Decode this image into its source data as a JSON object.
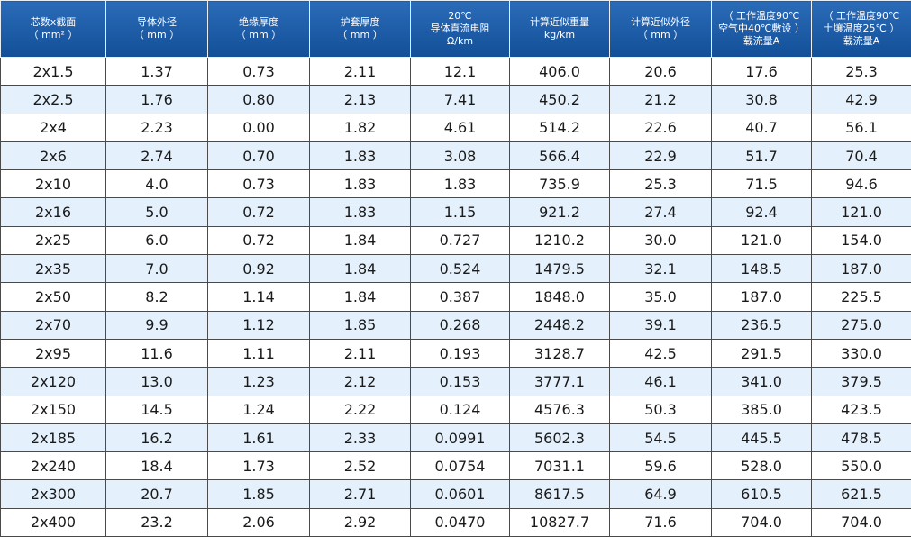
{
  "table": {
    "header": [
      [
        "芯数x截面",
        "（ mm² ）"
      ],
      [
        "导体外径",
        "（ mm ）"
      ],
      [
        "绝缘厚度",
        "（ mm ）"
      ],
      [
        "护套厚度",
        "（ mm ）"
      ],
      [
        "20℃",
        "导体直流电阻",
        "Ω/km"
      ],
      [
        "计算近似重量",
        "kg/km"
      ],
      [
        "计算近似外径",
        "（ mm ）"
      ],
      [
        "（ 工作温度90℃",
        "空气中40℃敷设 ）",
        "载流量A"
      ],
      [
        "（ 工作温度90℃",
        "土壤温度25℃ ）",
        "载流量A"
      ]
    ],
    "rows": [
      [
        "2x1.5",
        "1.37",
        "0.73",
        "2.11",
        "12.1",
        "406.0",
        "20.6",
        "17.6",
        "25.3"
      ],
      [
        "2x2.5",
        "1.76",
        "0.80",
        "2.13",
        "7.41",
        "450.2",
        "21.2",
        "30.8",
        "42.9"
      ],
      [
        "2x4",
        "2.23",
        "0.00",
        "1.82",
        "4.61",
        "514.2",
        "22.6",
        "40.7",
        "56.1"
      ],
      [
        "2x6",
        "2.74",
        "0.70",
        "1.83",
        "3.08",
        "566.4",
        "22.9",
        "51.7",
        "70.4"
      ],
      [
        "2x10",
        "4.0",
        "0.73",
        "1.83",
        "1.83",
        "735.9",
        "25.3",
        "71.5",
        "94.6"
      ],
      [
        "2x16",
        "5.0",
        "0.72",
        "1.83",
        "1.15",
        "921.2",
        "27.4",
        "92.4",
        "121.0"
      ],
      [
        "2x25",
        "6.0",
        "0.72",
        "1.84",
        "0.727",
        "1210.2",
        "30.0",
        "121.0",
        "154.0"
      ],
      [
        "2x35",
        "7.0",
        "0.92",
        "1.84",
        "0.524",
        "1479.5",
        "32.1",
        "148.5",
        "187.0"
      ],
      [
        "2x50",
        "8.2",
        "1.14",
        "1.84",
        "0.387",
        "1848.0",
        "35.0",
        "187.0",
        "225.5"
      ],
      [
        "2x70",
        "9.9",
        "1.12",
        "1.85",
        "0.268",
        "2448.2",
        "39.1",
        "236.5",
        "275.0"
      ],
      [
        "2x95",
        "11.6",
        "1.11",
        "2.11",
        "0.193",
        "3128.7",
        "42.5",
        "291.5",
        "330.0"
      ],
      [
        "2x120",
        "13.0",
        "1.23",
        "2.12",
        "0.153",
        "3777.1",
        "46.1",
        "341.0",
        "379.5"
      ],
      [
        "2x150",
        "14.5",
        "1.24",
        "2.22",
        "0.124",
        "4576.3",
        "50.3",
        "385.0",
        "423.5"
      ],
      [
        "2x185",
        "16.2",
        "1.61",
        "2.33",
        "0.0991",
        "5602.3",
        "54.5",
        "445.5",
        "478.5"
      ],
      [
        "2x240",
        "18.4",
        "1.73",
        "2.52",
        "0.0754",
        "7031.1",
        "59.6",
        "528.0",
        "550.0"
      ],
      [
        "2x300",
        "20.7",
        "1.85",
        "2.71",
        "0.0601",
        "8617.5",
        "64.9",
        "610.5",
        "621.5"
      ],
      [
        "2x400",
        "23.2",
        "2.06",
        "2.92",
        "0.0470",
        "10827.7",
        "71.6",
        "704.0",
        "704.0"
      ]
    ]
  }
}
